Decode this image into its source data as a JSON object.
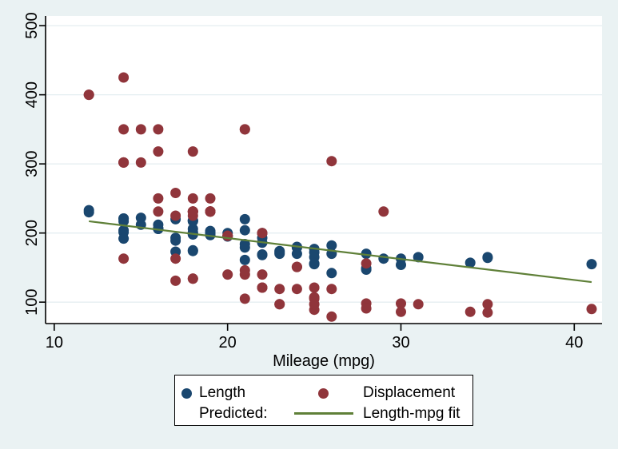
{
  "chart_data": {
    "type": "scatter",
    "title": "",
    "xlabel": "Mileage (mpg)",
    "ylabel": "",
    "xlim": [
      9.5,
      41.6
    ],
    "ylim": [
      69,
      514
    ],
    "xticks": [
      10,
      20,
      30,
      40
    ],
    "yticks": [
      100,
      200,
      300,
      400,
      500
    ],
    "grid": "horizontal",
    "legend_position": "bottom",
    "colors": {
      "figure_background": "#eaf2f3",
      "plot_background": "#ffffff",
      "gridline": "#e4eef1",
      "axis": "#000000",
      "text": "#000000"
    },
    "legend": {
      "predicted_label": "Predicted:"
    },
    "series": [
      {
        "name": "Length",
        "type": "scatter",
        "color": "#1a476f",
        "points": [
          [
            22,
            186
          ],
          [
            17,
            173
          ],
          [
            22,
            168
          ],
          [
            20,
            196
          ],
          [
            15,
            222
          ],
          [
            18,
            218
          ],
          [
            26,
            170
          ],
          [
            20,
            200
          ],
          [
            16,
            207
          ],
          [
            19,
            200
          ],
          [
            14,
            221
          ],
          [
            14,
            204
          ],
          [
            21,
            204
          ],
          [
            29,
            163
          ],
          [
            16,
            212
          ],
          [
            22,
            193
          ],
          [
            22,
            200
          ],
          [
            24,
            179
          ],
          [
            19,
            197
          ],
          [
            30,
            163
          ],
          [
            18,
            206
          ],
          [
            16,
            206
          ],
          [
            17,
            220
          ],
          [
            28,
            147
          ],
          [
            21,
            179
          ],
          [
            12,
            233
          ],
          [
            12,
            230
          ],
          [
            14,
            201
          ],
          [
            22,
            169
          ],
          [
            14,
            221
          ],
          [
            15,
            212
          ],
          [
            18,
            198
          ],
          [
            14,
            217
          ],
          [
            20,
            195
          ],
          [
            21,
            220
          ],
          [
            19,
            198
          ],
          [
            19,
            198
          ],
          [
            18,
            218
          ],
          [
            19,
            200
          ],
          [
            24,
            180
          ],
          [
            16,
            206
          ],
          [
            28,
            170
          ],
          [
            34,
            157
          ],
          [
            25,
            165
          ],
          [
            26,
            182
          ],
          [
            18,
            201
          ],
          [
            18,
            217
          ],
          [
            18,
            198
          ],
          [
            19,
            201
          ],
          [
            19,
            199
          ],
          [
            19,
            203
          ],
          [
            24,
            179
          ],
          [
            17,
            189
          ],
          [
            23,
            174
          ],
          [
            25,
            177
          ],
          [
            23,
            170
          ],
          [
            35,
            165
          ],
          [
            24,
            170
          ],
          [
            21,
            184
          ],
          [
            21,
            161
          ],
          [
            25,
            172
          ],
          [
            28,
            149
          ],
          [
            30,
            154
          ],
          [
            14,
            192
          ],
          [
            26,
            142
          ],
          [
            35,
            164
          ],
          [
            18,
            174
          ],
          [
            31,
            165
          ],
          [
            18,
            175
          ],
          [
            23,
            172
          ],
          [
            41,
            155
          ],
          [
            25,
            155
          ],
          [
            25,
            156
          ],
          [
            17,
            193
          ]
        ]
      },
      {
        "name": "Displacement",
        "type": "scatter",
        "color": "#90353b",
        "points": [
          [
            22,
            121
          ],
          [
            17,
            258
          ],
          [
            22,
            121
          ],
          [
            20,
            196
          ],
          [
            15,
            350
          ],
          [
            18,
            231
          ],
          [
            26,
            304
          ],
          [
            20,
            196
          ],
          [
            16,
            231
          ],
          [
            19,
            231
          ],
          [
            14,
            425
          ],
          [
            14,
            350
          ],
          [
            21,
            350
          ],
          [
            29,
            231
          ],
          [
            16,
            250
          ],
          [
            22,
            200
          ],
          [
            22,
            200
          ],
          [
            24,
            151
          ],
          [
            19,
            250
          ],
          [
            30,
            98
          ],
          [
            18,
            318
          ],
          [
            16,
            318
          ],
          [
            17,
            225
          ],
          [
            28,
            98
          ],
          [
            21,
            140
          ],
          [
            12,
            400
          ],
          [
            12,
            400
          ],
          [
            14,
            302
          ],
          [
            22,
            140
          ],
          [
            14,
            302
          ],
          [
            15,
            302
          ],
          [
            18,
            250
          ],
          [
            14,
            302
          ],
          [
            20,
            140
          ],
          [
            21,
            350
          ],
          [
            19,
            231
          ],
          [
            19,
            231
          ],
          [
            18,
            231
          ],
          [
            19,
            231
          ],
          [
            24,
            151
          ],
          [
            16,
            350
          ],
          [
            28,
            156
          ],
          [
            34,
            86
          ],
          [
            25,
            105
          ],
          [
            26,
            119
          ],
          [
            18,
            225
          ],
          [
            18,
            231
          ],
          [
            18,
            231
          ],
          [
            19,
            231
          ],
          [
            19,
            231
          ],
          [
            19,
            231
          ],
          [
            24,
            151
          ],
          [
            17,
            131
          ],
          [
            23,
            97
          ],
          [
            25,
            121
          ],
          [
            23,
            119
          ],
          [
            35,
            85
          ],
          [
            24,
            119
          ],
          [
            21,
            146
          ],
          [
            21,
            105
          ],
          [
            25,
            107
          ],
          [
            28,
            91
          ],
          [
            30,
            86
          ],
          [
            14,
            163
          ],
          [
            26,
            79
          ],
          [
            35,
            97
          ],
          [
            18,
            134
          ],
          [
            31,
            97
          ],
          [
            18,
            134
          ],
          [
            23,
            97
          ],
          [
            41,
            90
          ],
          [
            25,
            89
          ],
          [
            25,
            97
          ],
          [
            17,
            163
          ]
        ]
      },
      {
        "name": "Length-mpg fit",
        "type": "line",
        "color": "#5f8038",
        "points": [
          [
            12,
            217
          ],
          [
            41,
            129
          ]
        ]
      }
    ]
  }
}
